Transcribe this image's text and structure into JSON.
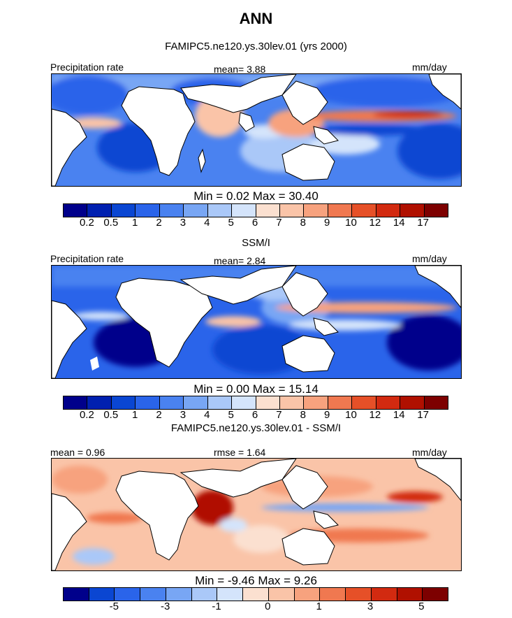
{
  "title": "ANN",
  "colors": {
    "abs_scale": [
      "#00008b",
      "#0020b0",
      "#0a46d2",
      "#2a64ea",
      "#4a82f0",
      "#78a6f4",
      "#aac8f8",
      "#d4e4fb",
      "#fbe0d0",
      "#fac4a8",
      "#f7a27e",
      "#f07850",
      "#e65028",
      "#d22a10",
      "#b01000",
      "#7d0000"
    ],
    "diff_scale": [
      "#00008b",
      "#0a46d2",
      "#2a64ea",
      "#4a82f0",
      "#78a6f4",
      "#aac8f8",
      "#d4e4fb",
      "#fbe0d0",
      "#fac4a8",
      "#f7a27e",
      "#f07850",
      "#e65028",
      "#d22a10",
      "#b01000",
      "#7d0000"
    ]
  },
  "panels": [
    {
      "subtitle": "FAMIPC5.ne120.ys.30lev.01 (yrs 2000)",
      "left_label": "Precipitation rate",
      "mid_label": "mean=   3.88",
      "units": "mm/day",
      "minmax": "Min =    0.02  Max =   30.40",
      "ticks": [
        "0.2",
        "0.5",
        "1",
        "2",
        "3",
        "4",
        "5",
        "6",
        "7",
        "8",
        "9",
        "10",
        "12",
        "14",
        "17"
      ]
    },
    {
      "subtitle": "SSM/I",
      "left_label": "Precipitation rate",
      "mid_label": "mean=   2.84",
      "units": "mm/day",
      "minmax": "Min =    0.00  Max =   15.14",
      "ticks": [
        "0.2",
        "0.5",
        "1",
        "2",
        "3",
        "4",
        "5",
        "6",
        "7",
        "8",
        "9",
        "10",
        "12",
        "14",
        "17"
      ]
    },
    {
      "subtitle": "FAMIPC5.ne120.ys.30lev.01 - SSM/I",
      "left_label": "mean =   0.96",
      "mid_label": "rmse =   1.64",
      "units": "mm/day",
      "minmax": "Min =  -9.46  Max =    9.26",
      "ticks": [
        "-5",
        "-3",
        "-1",
        "0",
        "1",
        "3",
        "5"
      ]
    }
  ]
}
